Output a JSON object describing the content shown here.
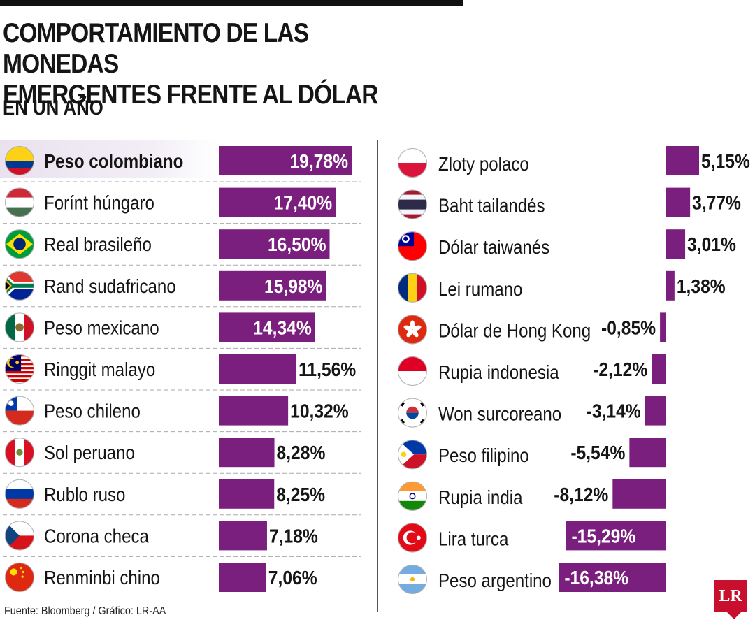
{
  "header": {
    "title_line1": "COMPORTAMIENTO DE LAS MONEDAS",
    "title_line2": "EMERGENTES FRENTE AL DÓLAR",
    "subtitle": "EN UN AÑO"
  },
  "footer": {
    "source": "Fuente: Bloomberg / Gráfico: LR-AA",
    "logo": "LR"
  },
  "colors": {
    "bar": "#7a1f7e",
    "highlight": "#ebe4f0",
    "text": "#151515"
  },
  "chart_data": {
    "type": "bar",
    "unit": "%",
    "columns": [
      {
        "items": [
          {
            "label": "Peso colombiano",
            "value": 19.78,
            "display": "19,78%",
            "flag": "colombia-flag-icon",
            "highlight": true
          },
          {
            "label": "Forínt húngaro",
            "value": 17.4,
            "display": "17,40%",
            "flag": "hungary-flag-icon"
          },
          {
            "label": "Real brasileño",
            "value": 16.5,
            "display": "16,50%",
            "flag": "brazil-flag-icon"
          },
          {
            "label": "Rand sudafricano",
            "value": 15.98,
            "display": "15,98%",
            "flag": "south-africa-flag-icon"
          },
          {
            "label": "Peso mexicano",
            "value": 14.34,
            "display": "14,34%",
            "flag": "mexico-flag-icon"
          },
          {
            "label": "Ringgit malayo",
            "value": 11.56,
            "display": "11,56%",
            "flag": "malaysia-flag-icon"
          },
          {
            "label": "Peso chileno",
            "value": 10.32,
            "display": "10,32%",
            "flag": "chile-flag-icon"
          },
          {
            "label": "Sol peruano",
            "value": 8.28,
            "display": "8,28%",
            "flag": "peru-flag-icon"
          },
          {
            "label": "Rublo ruso",
            "value": 8.25,
            "display": "8,25%",
            "flag": "russia-flag-icon"
          },
          {
            "label": "Corona checa",
            "value": 7.18,
            "display": "7,18%",
            "flag": "czech-flag-icon"
          },
          {
            "label": "Renminbi chino",
            "value": 7.06,
            "display": "7,06%",
            "flag": "china-flag-icon"
          }
        ]
      },
      {
        "items": [
          {
            "label": "Zloty polaco",
            "value": 5.15,
            "display": "5,15%",
            "flag": "poland-flag-icon"
          },
          {
            "label": "Baht tailandés",
            "value": 3.77,
            "display": "3,77%",
            "flag": "thailand-flag-icon"
          },
          {
            "label": "Dólar taiwanés",
            "value": 3.01,
            "display": "3,01%",
            "flag": "taiwan-flag-icon"
          },
          {
            "label": "Lei rumano",
            "value": 1.38,
            "display": "1,38%",
            "flag": "romania-flag-icon"
          },
          {
            "label": "Dólar de Hong Kong",
            "value": -0.85,
            "display": "-0,85%",
            "flag": "hong-kong-flag-icon"
          },
          {
            "label": "Rupia indonesia",
            "value": -2.12,
            "display": "-2,12%",
            "flag": "indonesia-flag-icon"
          },
          {
            "label": "Won surcoreano",
            "value": -3.14,
            "display": "-3,14%",
            "flag": "south-korea-flag-icon"
          },
          {
            "label": "Peso filipino",
            "value": -5.54,
            "display": "-5,54%",
            "flag": "philippines-flag-icon"
          },
          {
            "label": "Rupia india",
            "value": -8.12,
            "display": "-8,12%",
            "flag": "india-flag-icon"
          },
          {
            "label": "Lira turca",
            "value": -15.29,
            "display": "-15,29%",
            "flag": "turkey-flag-icon"
          },
          {
            "label": "Peso argentino",
            "value": -16.38,
            "display": "-16,38%",
            "flag": "argentina-flag-icon"
          }
        ]
      }
    ]
  }
}
